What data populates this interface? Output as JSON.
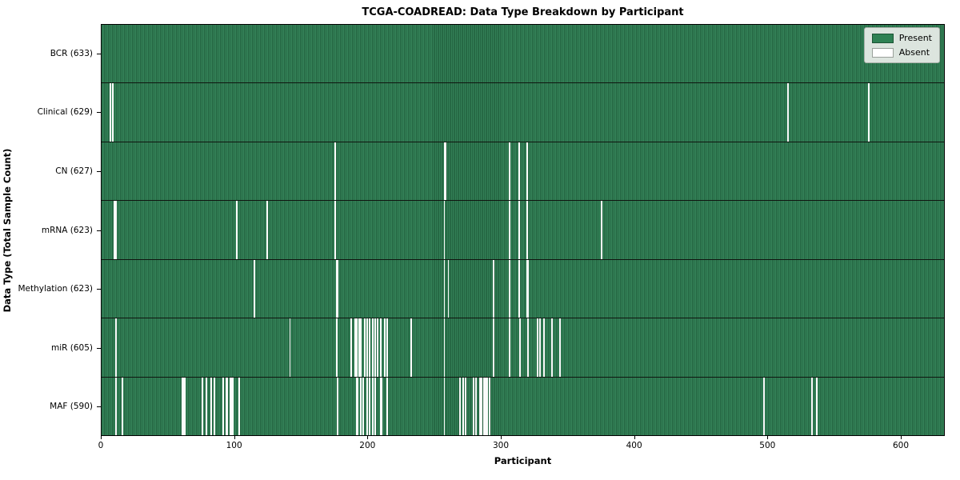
{
  "chart_data": {
    "type": "heatmap",
    "title": "TCGA-COADREAD: Data Type Breakdown by Participant",
    "xlabel": "Participant",
    "ylabel": "Data Type (Total Sample Count)",
    "n_participants": 633,
    "x_ticks": [
      0,
      100,
      200,
      300,
      400,
      500,
      600
    ],
    "legend": [
      {
        "label": "Present",
        "color": "#2e8153"
      },
      {
        "label": "Absent",
        "color": "#ffffff"
      }
    ],
    "colors": {
      "present_light": "#35855a",
      "present_dark": "#1b5434",
      "absent": "#fbfbfb",
      "legend_bg": "#e9eee9"
    },
    "rows": [
      {
        "label": "BCR (633)",
        "data_type": "BCR",
        "present_count": 633,
        "absent_participants": []
      },
      {
        "label": "Clinical (629)",
        "data_type": "Clinical",
        "present_count": 629,
        "absent_participants": [
          6,
          8,
          515,
          576
        ]
      },
      {
        "label": "CN (627)",
        "data_type": "CN",
        "present_count": 627,
        "absent_participants": [
          175,
          257,
          258,
          306,
          313,
          319
        ]
      },
      {
        "label": "mRNA (623)",
        "data_type": "mRNA",
        "present_count": 623,
        "absent_participants": [
          9,
          10,
          101,
          124,
          175,
          257,
          306,
          313,
          319,
          375
        ]
      },
      {
        "label": "Methylation (623)",
        "data_type": "Methylation",
        "present_count": 623,
        "absent_participants": [
          114,
          176,
          177,
          257,
          260,
          294,
          306,
          313,
          319,
          320
        ]
      },
      {
        "label": "miR (605)",
        "data_type": "miR",
        "present_count": 605,
        "absent_participants": [
          10,
          141,
          176,
          187,
          190,
          191,
          193,
          194,
          197,
          199,
          201,
          203,
          205,
          207,
          209,
          212,
          214,
          232,
          257,
          294,
          306,
          314,
          320,
          327,
          329,
          332,
          338,
          344
        ]
      },
      {
        "label": "MAF (590)",
        "data_type": "MAF",
        "present_count": 590,
        "absent_participants": [
          10,
          15,
          60,
          61,
          62,
          75,
          78,
          82,
          84,
          91,
          93,
          94,
          96,
          97,
          98,
          103,
          177,
          191,
          192,
          194,
          196,
          199,
          201,
          203,
          205,
          209,
          210,
          214,
          257,
          269,
          271,
          273,
          279,
          281,
          284,
          285,
          287,
          288,
          289,
          291,
          497,
          533,
          537
        ]
      }
    ]
  }
}
